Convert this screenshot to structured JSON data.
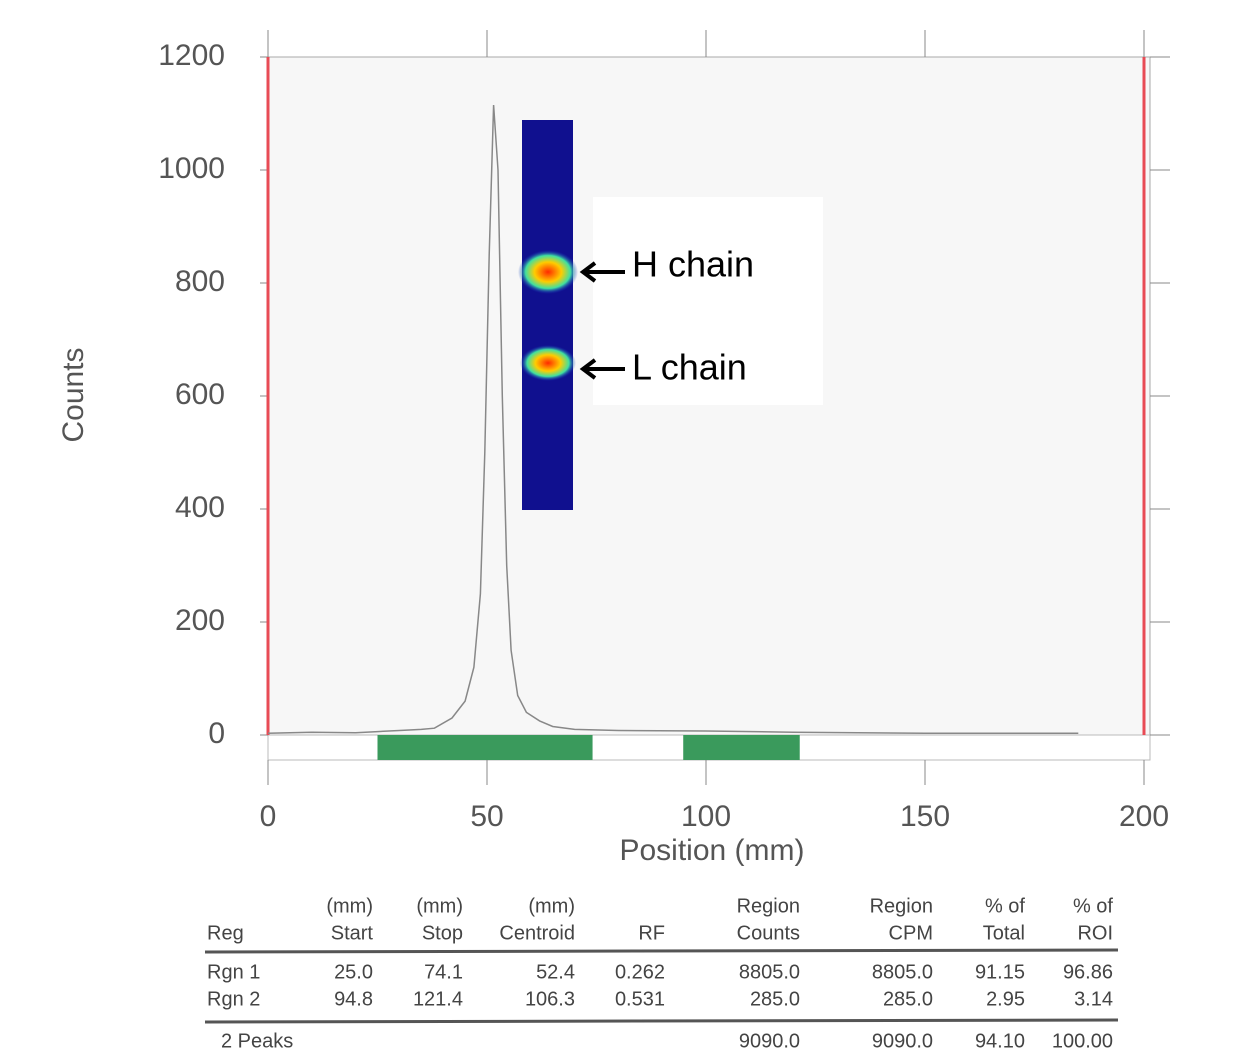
{
  "chart_data": {
    "type": "line",
    "xlabel": "Position (mm)",
    "ylabel": "Counts",
    "xlim": [
      0,
      200
    ],
    "ylim": [
      0,
      1200
    ],
    "xticks": [
      0,
      50,
      100,
      150,
      200
    ],
    "yticks": [
      0,
      200,
      400,
      600,
      800,
      1000,
      1200
    ],
    "series": [
      {
        "color": "#888888",
        "x": [
          0,
          10,
          20,
          25,
          30,
          35,
          38,
          42,
          45,
          47,
          48.5,
          49.5,
          50.5,
          51.5,
          52.5,
          53.5,
          54.5,
          55.5,
          57,
          59,
          62,
          65,
          70,
          80,
          100,
          120,
          150,
          185
        ],
        "values": [
          3,
          5,
          4,
          6,
          8,
          10,
          12,
          30,
          60,
          120,
          250,
          500,
          850,
          1115,
          1000,
          600,
          300,
          150,
          70,
          40,
          25,
          15,
          10,
          8,
          7,
          5,
          3,
          3
        ]
      }
    ],
    "roi": [
      0,
      200
    ],
    "roi_color": "#e84b55",
    "regions": [
      [
        25.0,
        74.1
      ],
      [
        94.8,
        121.4
      ]
    ],
    "region_color": "#3a9a5c",
    "annotations": [
      "H chain",
      "L chain"
    ]
  },
  "table": {
    "header": [
      [
        null,
        "Reg"
      ],
      [
        "(mm)",
        "Start"
      ],
      [
        "(mm)",
        "Stop"
      ],
      [
        "(mm)",
        "Centroid"
      ],
      [
        null,
        "RF"
      ],
      [
        "Region",
        "Counts"
      ],
      [
        "Region",
        "CPM"
      ],
      [
        "% of",
        "Total"
      ],
      [
        "% of",
        "ROI"
      ]
    ],
    "rows": [
      [
        "Rgn  1",
        "25.0",
        "74.1",
        "52.4",
        "0.262",
        "8805.0",
        "8805.0",
        "91.15",
        "96.86"
      ],
      [
        "Rgn  2",
        "94.8",
        "121.4",
        "106.3",
        "0.531",
        "285.0",
        "285.0",
        "2.95",
        "3.14"
      ]
    ],
    "footer": [
      "2 Peaks",
      null,
      null,
      null,
      null,
      "9090.0",
      "9090.0",
      "94.10",
      "100.00"
    ]
  }
}
